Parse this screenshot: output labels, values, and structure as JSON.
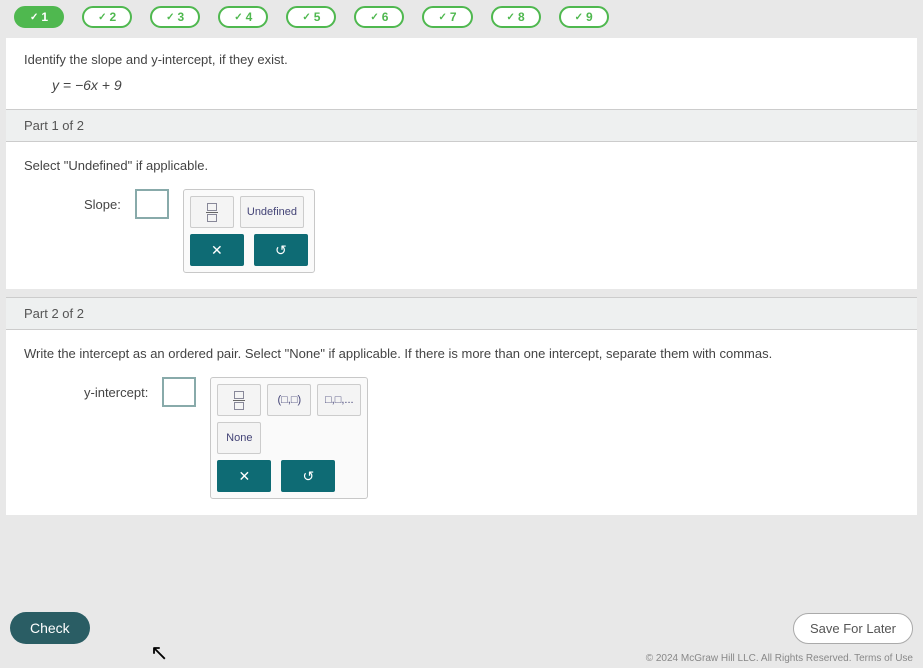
{
  "progress": {
    "items": [
      {
        "n": "1",
        "solid": true
      },
      {
        "n": "2",
        "solid": false
      },
      {
        "n": "3",
        "solid": false
      },
      {
        "n": "4",
        "solid": false
      },
      {
        "n": "5",
        "solid": false
      },
      {
        "n": "6",
        "solid": false
      },
      {
        "n": "7",
        "solid": false
      },
      {
        "n": "8",
        "solid": false
      },
      {
        "n": "9",
        "solid": false
      }
    ]
  },
  "question": {
    "prompt": "Identify the slope and y-intercept, if they exist.",
    "equation": "y = −6x + 9"
  },
  "part1": {
    "header": "Part 1 of 2",
    "instruction": "Select \"Undefined\" if applicable.",
    "label": "Slope:",
    "tools": {
      "undefined": "Undefined"
    }
  },
  "part2": {
    "header": "Part 2 of 2",
    "instruction": "Write the intercept as an ordered pair. Select \"None\" if applicable. If there is more than one intercept, separate them with commas.",
    "label": "y-intercept:",
    "tools": {
      "ordered_pair": "(□,□)",
      "multi": "□,□,...",
      "none": "None"
    }
  },
  "actions": {
    "clear": "✕",
    "reset": "↺"
  },
  "footer": {
    "check": "Check",
    "save": "Save For Later",
    "copyright": "© 2024 McGraw Hill LLC. All Rights Reserved.  Terms of Use"
  }
}
